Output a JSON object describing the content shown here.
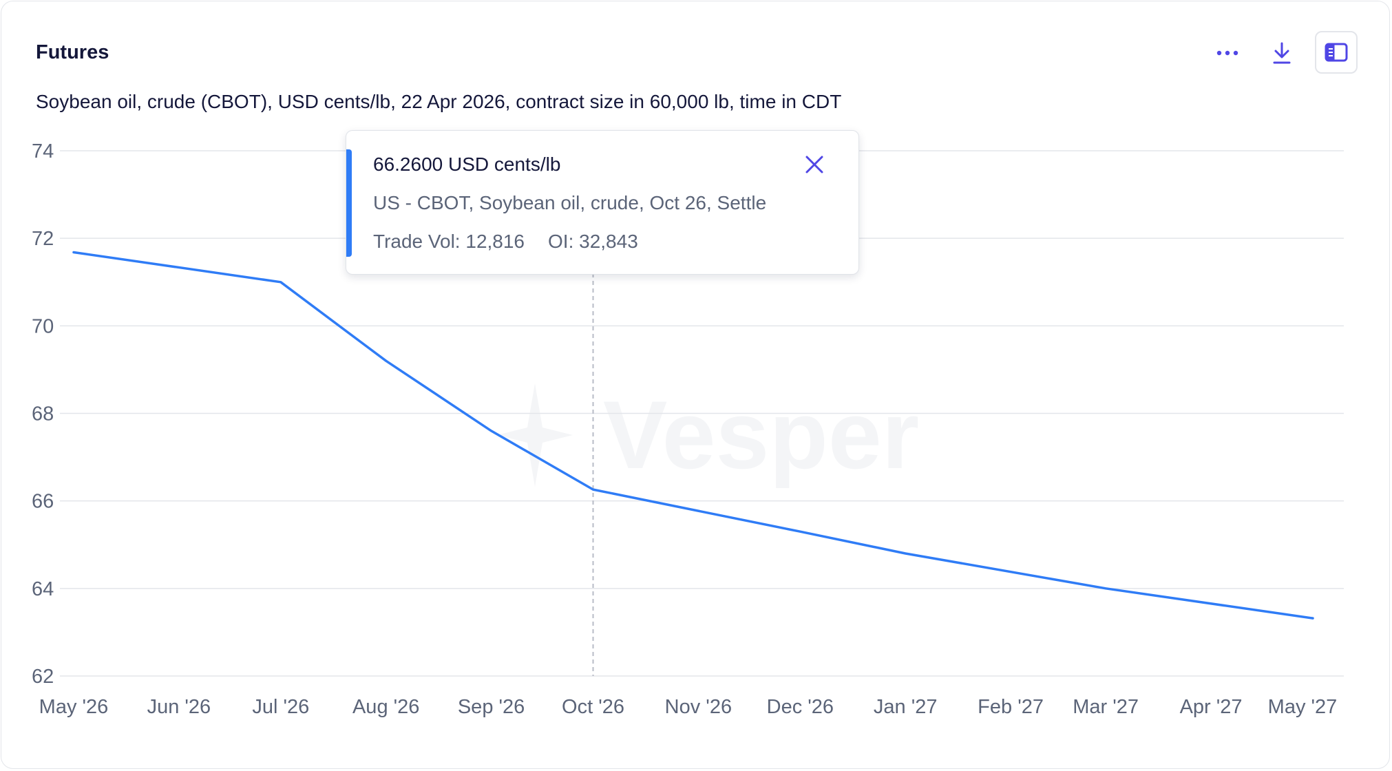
{
  "header": {
    "title": "Futures",
    "subtitle": "Soybean oil, crude (CBOT), USD cents/lb, 22 Apr 2026, contract size in 60,000 lb, time in CDT"
  },
  "toolbar": {
    "more_icon": "more-horizontal-icon",
    "download_icon": "download-icon",
    "panel_icon": "side-panel-icon"
  },
  "tooltip": {
    "value": "66.2600 USD cents/lb",
    "description": "US - CBOT, Soybean oil, crude, Oct 26, Settle",
    "trade_vol": "Trade Vol: 12,816",
    "open_interest": "OI: 32,843",
    "close_icon": "close-icon"
  },
  "watermark": {
    "text": "Vesper"
  },
  "colors": {
    "line": "#2f7cf6",
    "accent": "#4f46e5",
    "grid": "#e3e5ea",
    "axis_text": "#5b6478",
    "title": "#14173a"
  },
  "chart_data": {
    "type": "line",
    "title": "",
    "xlabel": "",
    "ylabel": "",
    "ylim": [
      62,
      74
    ],
    "yticks": [
      62,
      64,
      66,
      68,
      70,
      72,
      74
    ],
    "x_ticks": [
      "May '26",
      "Jun '26",
      "Jul '26",
      "Aug '26",
      "Sep '26",
      "Oct '26",
      "Nov '26",
      "Dec '26",
      "Jan '27",
      "Feb '27",
      "Mar '27",
      "Apr '27",
      "May '27"
    ],
    "x_range": [
      "2026-05-01",
      "2027-05-01"
    ],
    "grid": true,
    "legend": "none",
    "series": [
      {
        "x": [
          "2026-05-01",
          "2026-07-01",
          "2026-08-01",
          "2026-09-01",
          "2026-10-01",
          "2026-12-01",
          "2027-01-01",
          "2027-03-01",
          "2027-05-01"
        ],
        "values": [
          71.68,
          71.0,
          69.2,
          67.6,
          66.26,
          65.3,
          64.8,
          64.0,
          63.32
        ]
      }
    ],
    "highlight": {
      "x": "2026-10-01",
      "value": 66.26
    }
  }
}
